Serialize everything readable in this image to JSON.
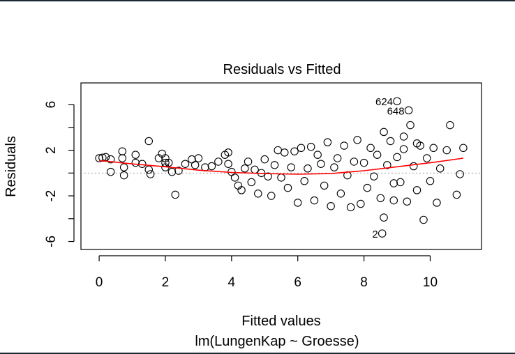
{
  "chart_data": {
    "type": "scatter",
    "title": "Residuals vs Fitted",
    "xlabel": "Fitted values",
    "subtitle": "lm(LungenKap ~ Groesse)",
    "ylabel": "Residuals",
    "xlim": [
      -0.55,
      11.55
    ],
    "ylim": [
      -6.7,
      7.9
    ],
    "x_ticks": [
      0,
      2,
      4,
      6,
      8,
      10
    ],
    "y_ticks": [
      -6,
      -4,
      -2,
      0,
      2,
      4,
      6
    ],
    "y_tick_labels": [
      "-6",
      "",
      "-2",
      "",
      "2",
      "",
      "6"
    ],
    "grid": false,
    "reference_line_y": 0,
    "smoother_color": "#ff0000",
    "point_color": "#000000",
    "annotations": [
      {
        "label": "624",
        "x": 9.0,
        "y": 6.3
      },
      {
        "label": "648",
        "x": 9.35,
        "y": 5.5
      },
      {
        "label": "2",
        "x": 8.55,
        "y": -5.3
      }
    ],
    "smoother": [
      [
        0.0,
        1.1
      ],
      [
        1.0,
        0.8
      ],
      [
        2.0,
        0.55
      ],
      [
        3.0,
        0.25
      ],
      [
        4.0,
        0.05
      ],
      [
        5.0,
        -0.05
      ],
      [
        6.0,
        -0.1
      ],
      [
        7.0,
        -0.05
      ],
      [
        8.0,
        0.2
      ],
      [
        9.0,
        0.55
      ],
      [
        10.0,
        0.9
      ],
      [
        11.0,
        1.3
      ]
    ],
    "points": [
      [
        0.0,
        1.3
      ],
      [
        0.1,
        1.35
      ],
      [
        0.2,
        1.4
      ],
      [
        0.35,
        1.2
      ],
      [
        0.35,
        0.1
      ],
      [
        0.7,
        1.9
      ],
      [
        0.7,
        1.3
      ],
      [
        0.75,
        0.5
      ],
      [
        0.75,
        -0.2
      ],
      [
        1.1,
        1.6
      ],
      [
        1.1,
        0.9
      ],
      [
        1.3,
        0.8
      ],
      [
        1.5,
        2.8
      ],
      [
        1.5,
        0.3
      ],
      [
        1.55,
        -0.1
      ],
      [
        1.8,
        1.3
      ],
      [
        1.9,
        1.7
      ],
      [
        2.0,
        1.3
      ],
      [
        2.0,
        0.9
      ],
      [
        2.0,
        0.5
      ],
      [
        2.1,
        0.9
      ],
      [
        2.2,
        0.1
      ],
      [
        2.3,
        -1.9
      ],
      [
        2.4,
        0.2
      ],
      [
        2.6,
        0.8
      ],
      [
        2.8,
        1.2
      ],
      [
        2.9,
        0.7
      ],
      [
        3.0,
        1.3
      ],
      [
        3.2,
        0.5
      ],
      [
        3.4,
        0.6
      ],
      [
        3.6,
        1.0
      ],
      [
        3.8,
        1.6
      ],
      [
        3.9,
        1.8
      ],
      [
        3.9,
        0.8
      ],
      [
        4.0,
        0.1
      ],
      [
        4.1,
        -0.4
      ],
      [
        4.2,
        -1.1
      ],
      [
        4.3,
        -1.5
      ],
      [
        4.4,
        0.4
      ],
      [
        4.5,
        1.0
      ],
      [
        4.6,
        -0.8
      ],
      [
        4.7,
        0.3
      ],
      [
        4.8,
        -1.8
      ],
      [
        4.9,
        0.0
      ],
      [
        5.0,
        1.2
      ],
      [
        5.1,
        -0.3
      ],
      [
        5.2,
        -2.0
      ],
      [
        5.3,
        0.7
      ],
      [
        5.4,
        2.0
      ],
      [
        5.5,
        -0.4
      ],
      [
        5.6,
        1.8
      ],
      [
        5.7,
        -1.3
      ],
      [
        5.8,
        0.5
      ],
      [
        5.9,
        1.9
      ],
      [
        6.0,
        -2.6
      ],
      [
        6.1,
        2.2
      ],
      [
        6.2,
        -0.7
      ],
      [
        6.3,
        0.4
      ],
      [
        6.4,
        2.3
      ],
      [
        6.5,
        -2.4
      ],
      [
        6.6,
        1.6
      ],
      [
        6.7,
        0.8
      ],
      [
        6.8,
        -1.1
      ],
      [
        6.9,
        2.7
      ],
      [
        7.0,
        -2.9
      ],
      [
        7.1,
        0.5
      ],
      [
        7.2,
        1.3
      ],
      [
        7.3,
        -1.8
      ],
      [
        7.4,
        2.4
      ],
      [
        7.5,
        -0.2
      ],
      [
        7.6,
        -3.0
      ],
      [
        7.7,
        1.0
      ],
      [
        7.8,
        2.9
      ],
      [
        7.9,
        -2.7
      ],
      [
        8.0,
        0.9
      ],
      [
        8.1,
        -1.3
      ],
      [
        8.2,
        2.2
      ],
      [
        8.3,
        -0.3
      ],
      [
        8.4,
        1.6
      ],
      [
        8.5,
        -2.2
      ],
      [
        8.6,
        3.6
      ],
      [
        8.6,
        -3.9
      ],
      [
        8.7,
        0.7
      ],
      [
        8.8,
        2.8
      ],
      [
        8.9,
        -2.4
      ],
      [
        9.0,
        1.4
      ],
      [
        9.1,
        -0.8
      ],
      [
        9.2,
        2.1
      ],
      [
        9.3,
        -2.5
      ],
      [
        9.4,
        4.2
      ],
      [
        9.5,
        0.6
      ],
      [
        9.6,
        -1.5
      ],
      [
        9.7,
        2.4
      ],
      [
        9.8,
        -4.1
      ],
      [
        9.9,
        1.3
      ],
      [
        10.0,
        -0.7
      ],
      [
        10.1,
        2.2
      ],
      [
        10.2,
        -2.6
      ],
      [
        10.3,
        0.4
      ],
      [
        10.5,
        2.0
      ],
      [
        10.6,
        4.2
      ],
      [
        10.8,
        -1.9
      ],
      [
        10.9,
        -0.1
      ],
      [
        11.0,
        2.2
      ],
      [
        9.0,
        6.3
      ],
      [
        9.35,
        5.5
      ],
      [
        8.55,
        -5.3
      ],
      [
        9.2,
        3.2
      ],
      [
        9.6,
        2.6
      ],
      [
        8.9,
        -0.9
      ]
    ]
  }
}
